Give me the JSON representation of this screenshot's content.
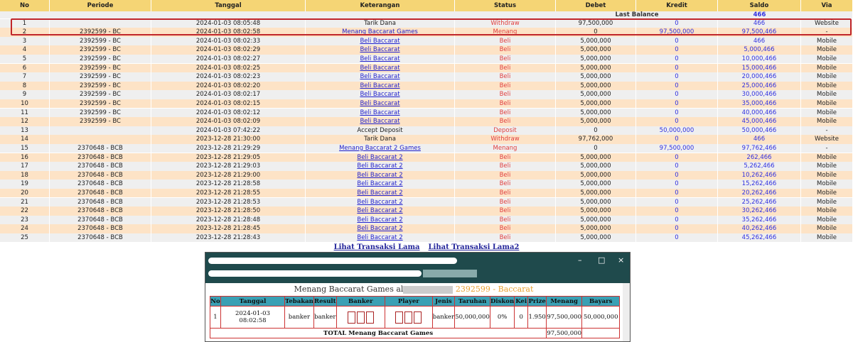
{
  "table": {
    "headers": [
      "No",
      "Periode",
      "Tanggal",
      "Keterangan",
      "Status",
      "Debet",
      "Kredit",
      "Saldo",
      "Via"
    ],
    "last_balance_label": "Last Balance",
    "last_balance": "466",
    "rows": [
      [
        "1",
        "",
        "2024-01-03 08:05:48",
        "Tarik Dana",
        "Withdraw",
        "97,500,000",
        "0",
        "466",
        "Website"
      ],
      [
        "2",
        "2392599 - BC",
        "2024-01-03 08:02:58",
        "Menang Baccarat Games",
        "Menang",
        "0",
        "97,500,000",
        "97,500,466",
        "-"
      ],
      [
        "3",
        "2392599 - BC",
        "2024-01-03 08:02:33",
        "Beli Baccarat",
        "Beli",
        "5,000,000",
        "0",
        "466",
        "Mobile"
      ],
      [
        "4",
        "2392599 - BC",
        "2024-01-03 08:02:29",
        "Beli Baccarat",
        "Beli",
        "5,000,000",
        "0",
        "5,000,466",
        "Mobile"
      ],
      [
        "5",
        "2392599 - BC",
        "2024-01-03 08:02:27",
        "Beli Baccarat",
        "Beli",
        "5,000,000",
        "0",
        "10,000,466",
        "Mobile"
      ],
      [
        "6",
        "2392599 - BC",
        "2024-01-03 08:02:25",
        "Beli Baccarat",
        "Beli",
        "5,000,000",
        "0",
        "15,000,466",
        "Mobile"
      ],
      [
        "7",
        "2392599 - BC",
        "2024-01-03 08:02:23",
        "Beli Baccarat",
        "Beli",
        "5,000,000",
        "0",
        "20,000,466",
        "Mobile"
      ],
      [
        "8",
        "2392599 - BC",
        "2024-01-03 08:02:20",
        "Beli Baccarat",
        "Beli",
        "5,000,000",
        "0",
        "25,000,466",
        "Mobile"
      ],
      [
        "9",
        "2392599 - BC",
        "2024-01-03 08:02:17",
        "Beli Baccarat",
        "Beli",
        "5,000,000",
        "0",
        "30,000,466",
        "Mobile"
      ],
      [
        "10",
        "2392599 - BC",
        "2024-01-03 08:02:15",
        "Beli Baccarat",
        "Beli",
        "5,000,000",
        "0",
        "35,000,466",
        "Mobile"
      ],
      [
        "11",
        "2392599 - BC",
        "2024-01-03 08:02:12",
        "Beli Baccarat",
        "Beli",
        "5,000,000",
        "0",
        "40,000,466",
        "Mobile"
      ],
      [
        "12",
        "2392599 - BC",
        "2024-01-03 08:02:09",
        "Beli Baccarat",
        "Beli",
        "5,000,000",
        "0",
        "45,000,466",
        "Mobile"
      ],
      [
        "13",
        "",
        "2024-01-03 07:42:22",
        "Accept Deposit",
        "Deposit",
        "0",
        "50,000,000",
        "50,000,466",
        "-"
      ],
      [
        "14",
        "",
        "2023-12-28 21:30:00",
        "Tarik Dana",
        "Withdraw",
        "97,762,000",
        "0",
        "466",
        "Website"
      ],
      [
        "15",
        "2370648 - BCB",
        "2023-12-28 21:29:29",
        "Menang Baccarat 2 Games",
        "Menang",
        "0",
        "97,500,000",
        "97,762,466",
        "-"
      ],
      [
        "16",
        "2370648 - BCB",
        "2023-12-28 21:29:05",
        "Beli Baccarat 2",
        "Beli",
        "5,000,000",
        "0",
        "262,466",
        "Mobile"
      ],
      [
        "17",
        "2370648 - BCB",
        "2023-12-28 21:29:03",
        "Beli Baccarat 2",
        "Beli",
        "5,000,000",
        "0",
        "5,262,466",
        "Mobile"
      ],
      [
        "18",
        "2370648 - BCB",
        "2023-12-28 21:29:00",
        "Beli Baccarat 2",
        "Beli",
        "5,000,000",
        "0",
        "10,262,466",
        "Mobile"
      ],
      [
        "19",
        "2370648 - BCB",
        "2023-12-28 21:28:58",
        "Beli Baccarat 2",
        "Beli",
        "5,000,000",
        "0",
        "15,262,466",
        "Mobile"
      ],
      [
        "20",
        "2370648 - BCB",
        "2023-12-28 21:28:55",
        "Beli Baccarat 2",
        "Beli",
        "5,000,000",
        "0",
        "20,262,466",
        "Mobile"
      ],
      [
        "21",
        "2370648 - BCB",
        "2023-12-28 21:28:53",
        "Beli Baccarat 2",
        "Beli",
        "5,000,000",
        "0",
        "25,262,466",
        "Mobile"
      ],
      [
        "22",
        "2370648 - BCB",
        "2023-12-28 21:28:50",
        "Beli Baccarat 2",
        "Beli",
        "5,000,000",
        "0",
        "30,262,466",
        "Mobile"
      ],
      [
        "23",
        "2370648 - BCB",
        "2023-12-28 21:28:48",
        "Beli Baccarat 2",
        "Beli",
        "5,000,000",
        "0",
        "35,262,466",
        "Mobile"
      ],
      [
        "24",
        "2370648 - BCB",
        "2023-12-28 21:28:45",
        "Beli Baccarat 2",
        "Beli",
        "5,000,000",
        "0",
        "40,262,466",
        "Mobile"
      ],
      [
        "25",
        "2370648 - BCB",
        "2023-12-28 21:28:43",
        "Beli Baccarat 2",
        "Beli",
        "5,000,000",
        "0",
        "45,262,466",
        "Mobile"
      ]
    ]
  },
  "links": [
    "Lihat Transaksi Lama",
    "Lihat Transaksi Lama2"
  ],
  "popup": {
    "title": "Menang Baccarat Games al",
    "game": "2392599 - Baccarat",
    "headers": [
      "No",
      "Tanggal",
      "Tebakan",
      "Result",
      "Banker",
      "Player",
      "Jenis",
      "Taruhan",
      "Diskon",
      "Kei",
      "Prize",
      "Menang",
      "Bayars"
    ],
    "row": {
      "no": "1",
      "tanggal": "2024-01-03 08:02:58",
      "tebakan": "banker",
      "result": "banker",
      "jenis": "banker",
      "taruhan": "50,000,000",
      "diskon": "0%",
      "kei": "0",
      "prize": "1.950",
      "menang": "97,500,000",
      "bayars": "50,000,000"
    },
    "total_label": "TOTAL  Menang Baccarat Games",
    "total": "97,500,000"
  }
}
